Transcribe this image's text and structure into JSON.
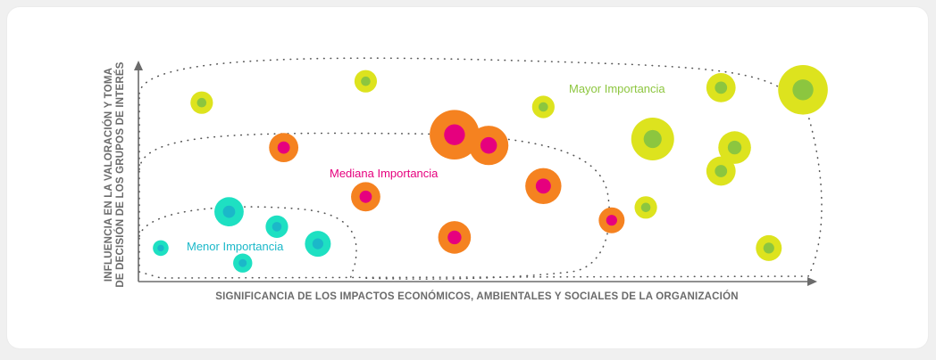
{
  "chart_data": {
    "type": "scatter",
    "xlabel": "SIGNIFICANCIA DE LOS IMPACTOS ECONÓMICOS, AMBIENTALES Y SOCIALES DE LA ORGANIZACIÓN",
    "ylabel_line1": "INFLUENCIA EN LA VALORACIÓN Y TOMA",
    "ylabel_line2": "DE DECISIÓN DE LOS GRUPOS DE INTERÉS",
    "grid": false,
    "zones": [
      {
        "name": "Mayor Importancia",
        "color": "#8dc63f"
      },
      {
        "name": "Mediana Importancia",
        "color": "#e6007e"
      },
      {
        "name": "Menor Importancia",
        "color": "#1bb8c9"
      }
    ],
    "series": [
      {
        "name": "Mayor Importancia",
        "outer_color": "#dde31e",
        "inner_color": "#8cc63f",
        "points": [
          {
            "x": 9,
            "y": 82,
            "size": 2
          },
          {
            "x": 33,
            "y": 92,
            "size": 2
          },
          {
            "x": 59,
            "y": 80,
            "size": 2
          },
          {
            "x": 75,
            "y": 65,
            "size": 5
          },
          {
            "x": 85,
            "y": 89,
            "size": 3
          },
          {
            "x": 97,
            "y": 88,
            "size": 6
          },
          {
            "x": 87,
            "y": 61,
            "size": 3.5
          },
          {
            "x": 85,
            "y": 50,
            "size": 3
          },
          {
            "x": 74,
            "y": 33,
            "size": 2
          },
          {
            "x": 92,
            "y": 14,
            "size": 2.5
          }
        ]
      },
      {
        "name": "Mediana Importancia",
        "outer_color": "#f58220",
        "inner_color": "#e6007e",
        "points": [
          {
            "x": 21,
            "y": 61,
            "size": 3
          },
          {
            "x": 46,
            "y": 67,
            "size": 6
          },
          {
            "x": 51,
            "y": 62,
            "size": 4.5
          },
          {
            "x": 33,
            "y": 38,
            "size": 3
          },
          {
            "x": 59,
            "y": 43,
            "size": 4
          },
          {
            "x": 69,
            "y": 27,
            "size": 2.5
          },
          {
            "x": 46,
            "y": 19,
            "size": 3.5
          }
        ]
      },
      {
        "name": "Menor Importancia",
        "outer_color": "#1ee0c2",
        "inner_color": "#1bb8c9",
        "points": [
          {
            "x": 13,
            "y": 31,
            "size": 3
          },
          {
            "x": 20,
            "y": 24,
            "size": 2
          },
          {
            "x": 26,
            "y": 16,
            "size": 2.5
          },
          {
            "x": 3,
            "y": 14,
            "size": 1
          },
          {
            "x": 15,
            "y": 7,
            "size": 1.5
          }
        ]
      }
    ]
  },
  "colors": {
    "axis": "#6b6b6b",
    "dotted_boundary": "#555555",
    "card_background": "#ffffff",
    "page_background": "#f0f0f0"
  }
}
